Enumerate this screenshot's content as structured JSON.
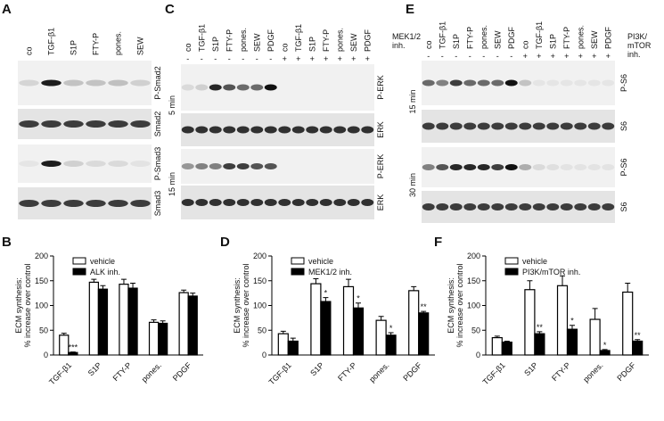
{
  "blots": [
    {
      "panel": "A",
      "lanes": [
        "co",
        "TGF-β1",
        "S1P",
        "FTY-P",
        "pones.",
        "SEW"
      ],
      "rows": [
        "P-Smad2",
        "Smad2",
        "P-Smad3",
        "Smad3"
      ]
    },
    {
      "panel": "C",
      "lanes": [
        "co",
        "TGF-β1",
        "S1P",
        "FTY-P",
        "pones.",
        "SEW",
        "PDGF",
        "co",
        "TGF-β1",
        "S1P",
        "FTY-P",
        "pones.",
        "SEW",
        "PDGF"
      ],
      "treatment": [
        "MEK1/2",
        "inh."
      ],
      "treatment_marks": [
        "-",
        "-",
        "-",
        "-",
        "-",
        "-",
        "-",
        "+",
        "+",
        "+",
        "+",
        "+",
        "+",
        "+"
      ],
      "rows": [
        "P-ERK",
        "ERK",
        "P-ERK",
        "ERK"
      ],
      "times": [
        "5 min",
        "15 min"
      ]
    },
    {
      "panel": "E",
      "lanes": [
        "co",
        "TGF-β1",
        "S1P",
        "FTY-P",
        "pones.",
        "SEW",
        "PDGF",
        "co",
        "TGF-β1",
        "S1P",
        "FTY-P",
        "pones.",
        "SEW",
        "PDGF"
      ],
      "treatment": [
        "PI3K/",
        "mTOR",
        "inh."
      ],
      "treatment_marks": [
        "-",
        "-",
        "-",
        "-",
        "-",
        "-",
        "-",
        "+",
        "+",
        "+",
        "+",
        "+",
        "+",
        "+"
      ],
      "rows": [
        "P-S6",
        "S6",
        "P-S6",
        "S6"
      ],
      "times": [
        "15 min",
        "30 min"
      ]
    }
  ],
  "chart_data": [
    {
      "type": "bar",
      "panel": "B",
      "ylabel": [
        "ECM synthesis:",
        "% increase over control"
      ],
      "categories": [
        "TGF-β1",
        "S1P",
        "FTY-P",
        "pones.",
        "PDGF"
      ],
      "ylim": [
        0,
        200
      ],
      "yticks": [
        0,
        50,
        100,
        150,
        200
      ],
      "series": [
        {
          "name": "vehicle",
          "color": "#ffffff",
          "values": [
            40,
            147,
            143,
            66,
            126
          ],
          "errors": [
            4,
            6,
            10,
            5,
            5
          ]
        },
        {
          "name": "ALK inh.",
          "color": "#000000",
          "values": [
            5,
            133,
            135,
            64,
            119
          ],
          "errors": [
            1,
            7,
            10,
            5,
            6
          ],
          "annotations": [
            "***",
            null,
            null,
            null,
            null
          ]
        }
      ]
    },
    {
      "type": "bar",
      "panel": "D",
      "ylabel": [
        "ECM synthesis:",
        "% increase over control"
      ],
      "categories": [
        "TGF-β1",
        "S1P",
        "FTY-P",
        "pones.",
        "PDGF"
      ],
      "ylim": [
        0,
        200
      ],
      "yticks": [
        0,
        50,
        100,
        150,
        200
      ],
      "series": [
        {
          "name": "vehicle",
          "color": "#ffffff",
          "values": [
            43,
            144,
            138,
            70,
            130
          ],
          "errors": [
            5,
            10,
            15,
            8,
            8
          ]
        },
        {
          "name": "MEK1/2 inh.",
          "color": "#000000",
          "values": [
            28,
            108,
            95,
            40,
            85
          ],
          "errors": [
            6,
            8,
            10,
            5,
            3
          ],
          "annotations": [
            null,
            "*",
            "*",
            "*",
            "**"
          ]
        }
      ]
    },
    {
      "type": "bar",
      "panel": "F",
      "ylabel": [
        "ECM synthesis:",
        "% increase over control"
      ],
      "categories": [
        "TGF-β1",
        "S1P",
        "FTY-P",
        "pones.",
        "PDGF"
      ],
      "ylim": [
        0,
        200
      ],
      "yticks": [
        0,
        50,
        100,
        150,
        200
      ],
      "series": [
        {
          "name": "vehicle",
          "color": "#ffffff",
          "values": [
            35,
            132,
            140,
            72,
            127
          ],
          "errors": [
            3,
            18,
            20,
            22,
            18
          ]
        },
        {
          "name": "PI3K/mTOR inh.",
          "color": "#000000",
          "values": [
            26,
            43,
            52,
            9,
            28
          ],
          "errors": [
            2,
            4,
            8,
            2,
            3
          ],
          "annotations": [
            null,
            "**",
            "*",
            "*",
            "**"
          ]
        }
      ]
    }
  ]
}
